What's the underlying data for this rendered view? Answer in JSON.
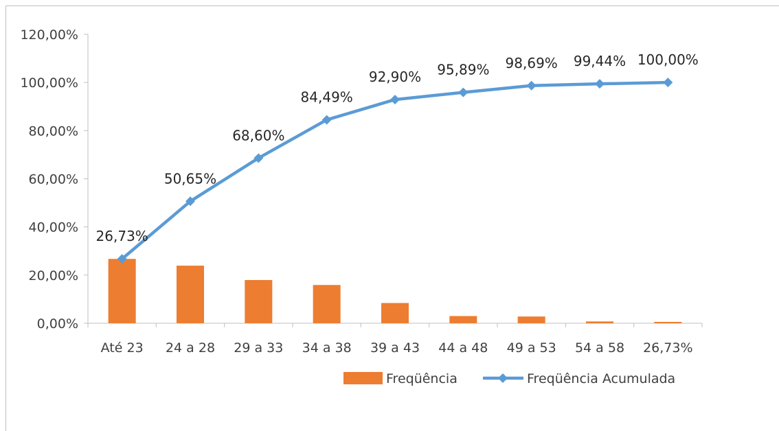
{
  "chart_data": {
    "type": "bar",
    "categories": [
      "Até 23",
      "24 a 28",
      "29 a 33",
      "34 a 38",
      "39 a 43",
      "44 a 48",
      "49 a 53",
      "54 a 58",
      "26,73%"
    ],
    "series": [
      {
        "name": "Freqüência",
        "type": "bar",
        "color": "#ED7D31",
        "values": [
          26.73,
          23.92,
          17.95,
          15.89,
          8.41,
          2.99,
          2.8,
          0.75,
          0.56
        ]
      },
      {
        "name": "Freqüência Acumulada",
        "type": "line",
        "color": "#5B9BD5",
        "values": [
          26.73,
          50.65,
          68.6,
          84.49,
          92.9,
          95.89,
          98.69,
          99.44,
          100.0
        ],
        "data_labels": [
          "26,73%",
          "50,65%",
          "68,60%",
          "84,49%",
          "92,90%",
          "95,89%",
          "98,69%",
          "99,44%",
          "100,00%"
        ]
      }
    ],
    "yaxis": {
      "ticks": [
        "0,00%",
        "20,00%",
        "40,00%",
        "60,00%",
        "80,00%",
        "100,00%",
        "120,00%"
      ],
      "tick_values": [
        0,
        20,
        40,
        60,
        80,
        100,
        120
      ],
      "ylim": [
        0,
        120
      ]
    },
    "legend_position": "bottom-right",
    "grid": false
  }
}
